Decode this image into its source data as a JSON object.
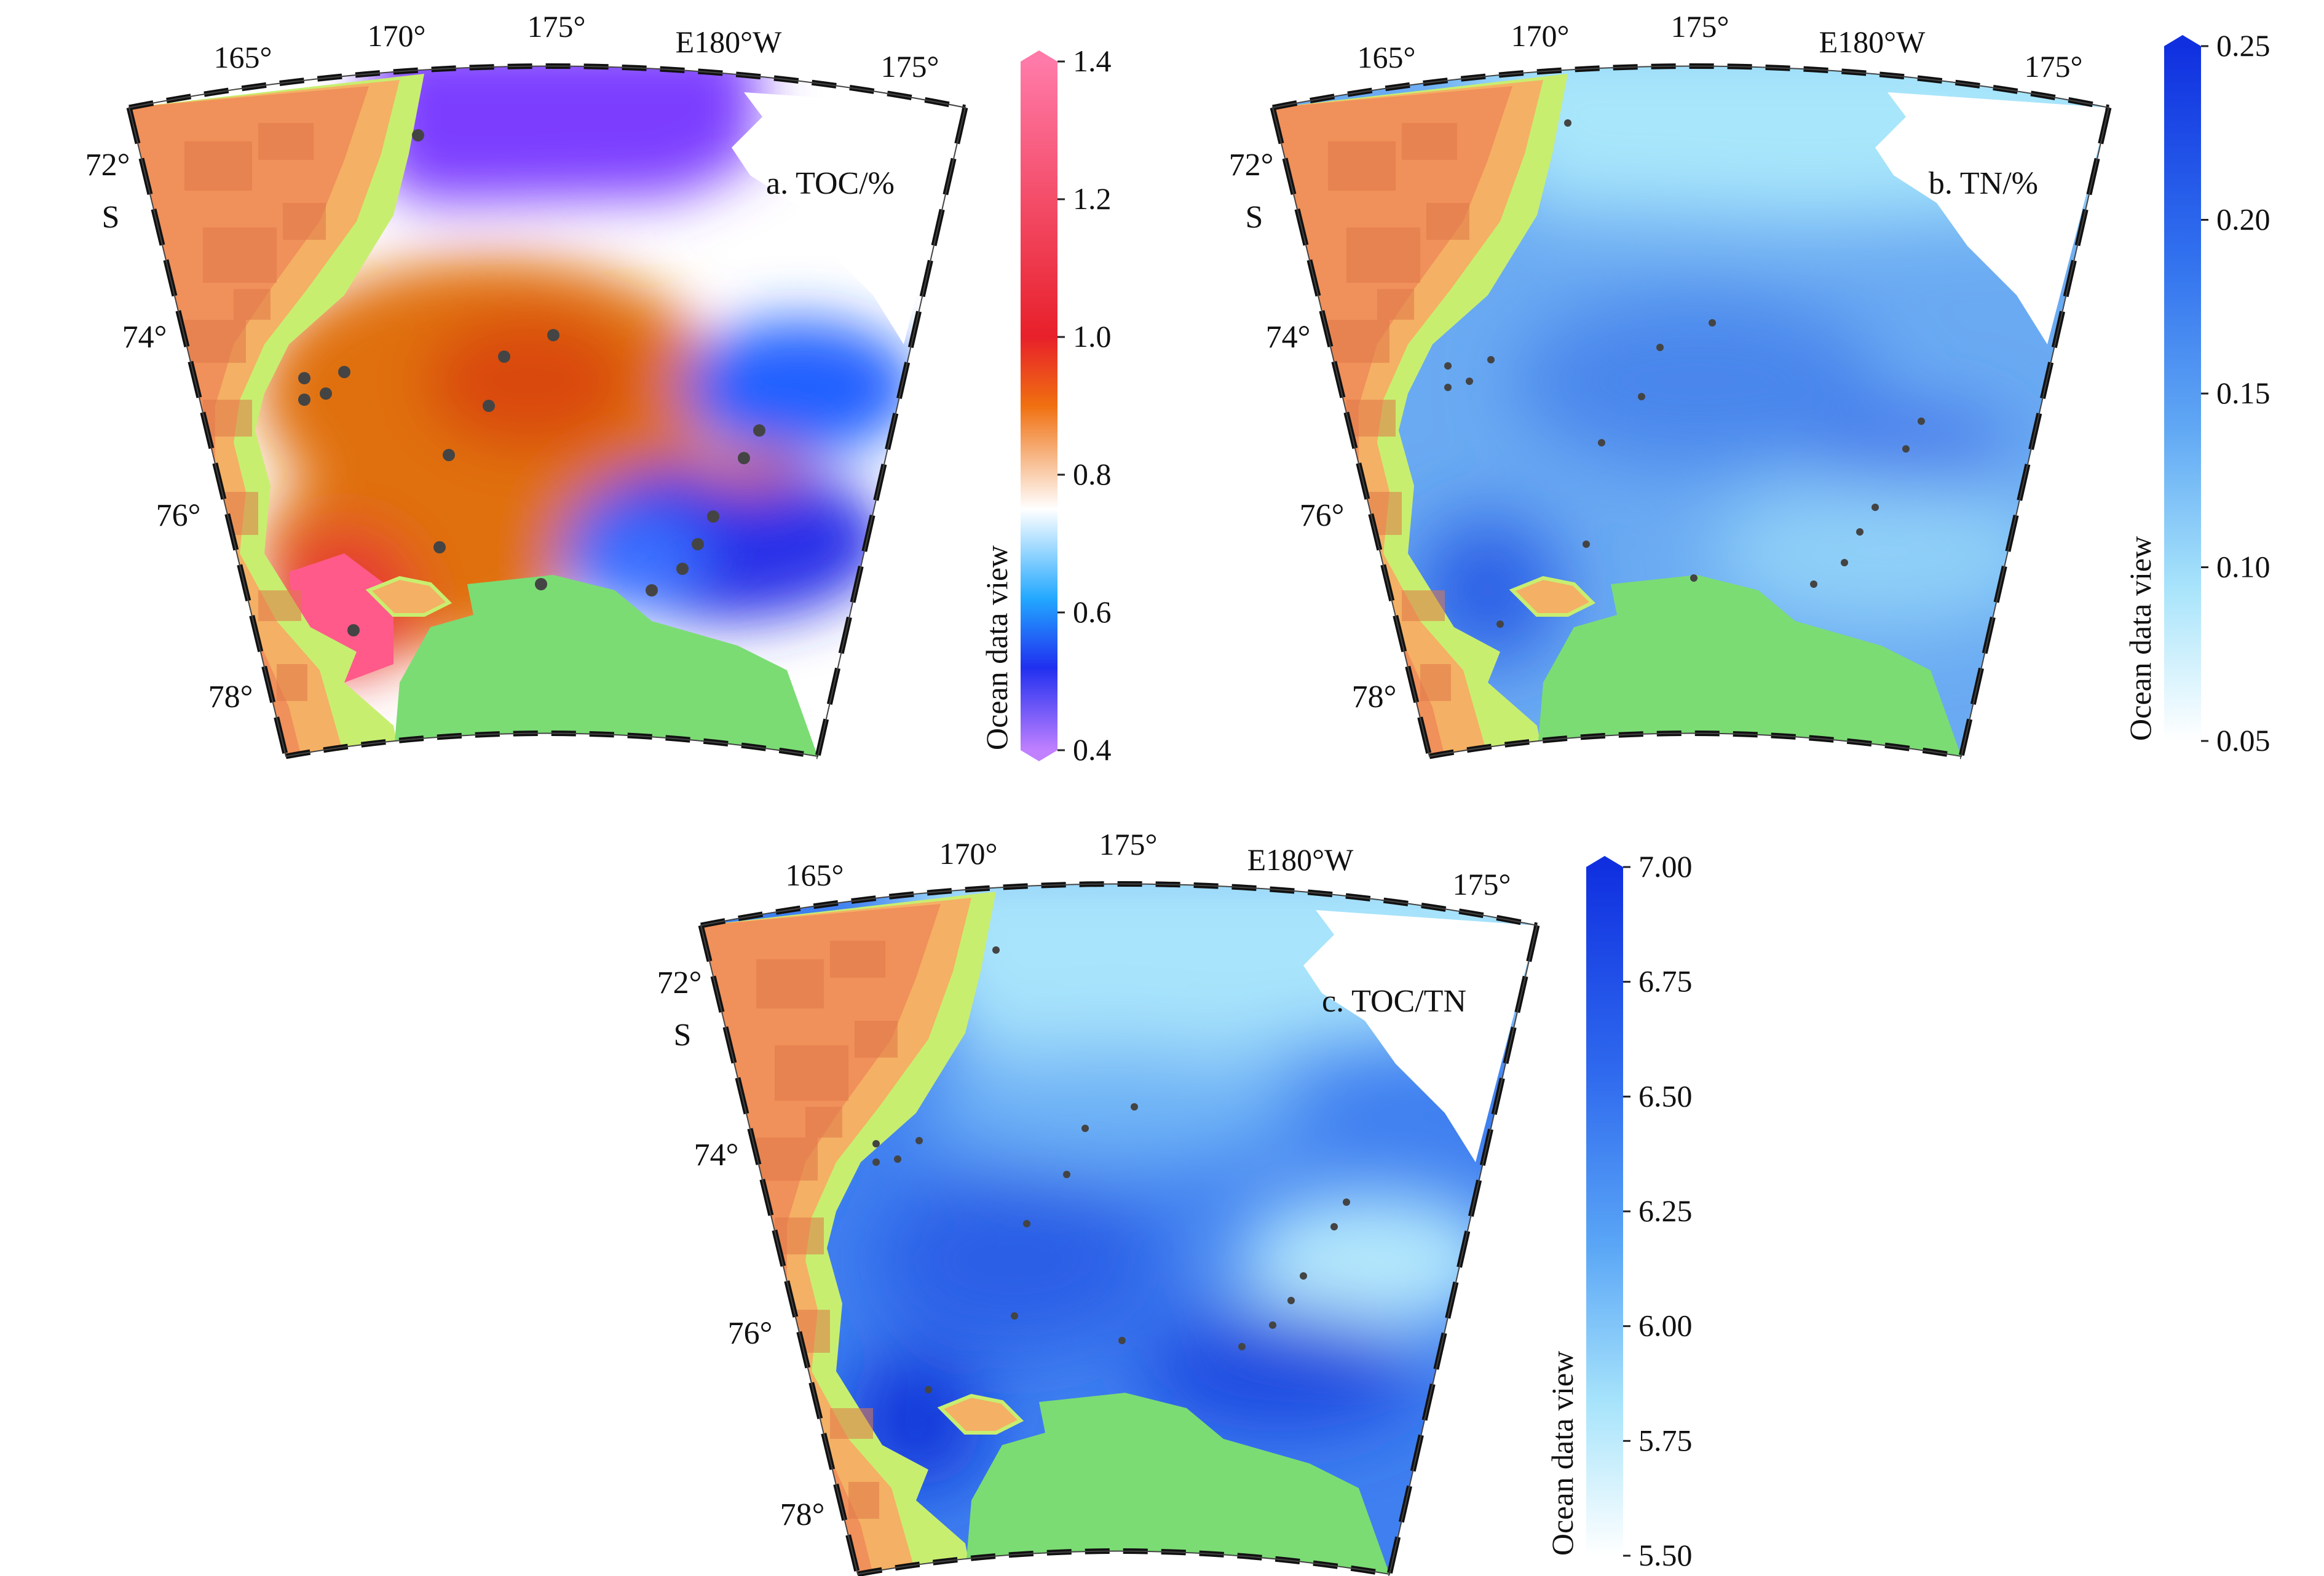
{
  "panels": [
    {
      "id": "a",
      "label": "a. TOC/%",
      "colorbar": {
        "title": "Ocean data view",
        "ticks": [
          "1.4",
          "1.2",
          "1.0",
          "0.8",
          "0.6",
          "0.4"
        ],
        "stops": [
          [
            "#ff7aa8",
            0
          ],
          [
            "#e8202a",
            0.4
          ],
          [
            "#f07010",
            0.5
          ],
          [
            "#ffffff",
            0.65
          ],
          [
            "#22a8ff",
            0.78
          ],
          [
            "#2030f0",
            0.88
          ],
          [
            "#c080ff",
            1
          ]
        ]
      },
      "field_colors": {
        "top": "#7b3cff",
        "band": "#ffffff",
        "hot": "#e07010",
        "red": "#ff5a8a",
        "east": "#2060ff",
        "south": "#2a30e8"
      }
    },
    {
      "id": "b",
      "label": "b. TN/%",
      "colorbar": {
        "title": "Ocean data view",
        "ticks": [
          "0.25",
          "0.20",
          "0.15",
          "0.10",
          "0.05"
        ],
        "stops": [
          [
            "#1030e0",
            0
          ],
          [
            "#3070ee",
            0.3
          ],
          [
            "#60a8f4",
            0.55
          ],
          [
            "#a8e4fb",
            0.78
          ],
          [
            "#ffffff",
            1
          ]
        ]
      },
      "field_colors": {
        "base": "#6aaaf2",
        "top": "#a8e6fb",
        "deep": "#2a5ee6"
      }
    },
    {
      "id": "c",
      "label": "c. TOC/TN",
      "colorbar": {
        "title": "Ocean data view",
        "ticks": [
          "7.00",
          "6.75",
          "6.50",
          "6.25",
          "6.00",
          "5.75",
          "5.50"
        ],
        "stops": [
          [
            "#1030e0",
            0
          ],
          [
            "#2f6aee",
            0.3
          ],
          [
            "#5aa6f6",
            0.55
          ],
          [
            "#a8e4fb",
            0.78
          ],
          [
            "#ffffff",
            1
          ]
        ]
      },
      "field_colors": {
        "base": "#3f7ff0",
        "top": "#a8e4fb",
        "light": "#b8ecfd",
        "deep": "#1e48e0"
      }
    }
  ],
  "map_labels": {
    "lon": [
      "165°",
      "170°",
      "175°",
      "E180°W",
      "175°"
    ],
    "lat": [
      "72°",
      "S",
      "74°",
      "76°",
      "78°"
    ]
  },
  "land_colors": {
    "land_high": "#f0905a",
    "land_mid": "#f4b064",
    "land_low": "#c8ee70",
    "shelf": "#7bdc74",
    "mountain": "#e07848"
  }
}
